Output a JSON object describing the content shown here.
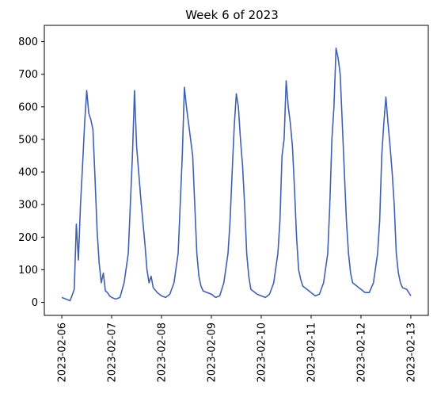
{
  "chart_data": {
    "type": "line",
    "title": "Week 6 of 2023",
    "xlabel": "",
    "ylabel": "",
    "x_range": [
      "2023-02-06",
      "2023-02-13"
    ],
    "ylim": [
      -40,
      850
    ],
    "x_ticks": [
      "2023-02-06",
      "2023-02-07",
      "2023-02-08",
      "2023-02-09",
      "2023-02-10",
      "2023-02-11",
      "2023-02-12",
      "2023-02-13"
    ],
    "y_ticks": [
      0,
      100,
      200,
      300,
      400,
      500,
      600,
      700,
      800
    ],
    "grid": false,
    "colors": {
      "series": "#4060B0"
    },
    "series": [
      {
        "x": [
          "2023-02-06 00:00",
          "2023-02-06 02:00",
          "2023-02-06 04:00",
          "2023-02-06 06:00",
          "2023-02-06 07:00",
          "2023-02-06 08:00",
          "2023-02-06 09:00",
          "2023-02-06 10:00",
          "2023-02-06 11:00",
          "2023-02-06 12:00",
          "2023-02-06 13:00",
          "2023-02-06 14:00",
          "2023-02-06 15:00",
          "2023-02-06 16:00",
          "2023-02-06 17:00",
          "2023-02-06 18:00",
          "2023-02-06 19:00",
          "2023-02-06 20:00",
          "2023-02-06 21:00",
          "2023-02-06 22:00",
          "2023-02-06 23:00",
          "2023-02-07 00:00",
          "2023-02-07 02:00",
          "2023-02-07 04:00",
          "2023-02-07 06:00",
          "2023-02-07 08:00",
          "2023-02-07 09:00",
          "2023-02-07 10:00",
          "2023-02-07 11:00",
          "2023-02-07 12:00",
          "2023-02-07 13:00",
          "2023-02-07 14:00",
          "2023-02-07 15:00",
          "2023-02-07 16:00",
          "2023-02-07 17:00",
          "2023-02-07 18:00",
          "2023-02-07 19:00",
          "2023-02-07 20:00",
          "2023-02-07 22:00",
          "2023-02-08 00:00",
          "2023-02-08 02:00",
          "2023-02-08 04:00",
          "2023-02-08 06:00",
          "2023-02-08 08:00",
          "2023-02-08 09:00",
          "2023-02-08 10:00",
          "2023-02-08 11:00",
          "2023-02-08 12:00",
          "2023-02-08 13:00",
          "2023-02-08 14:00",
          "2023-02-08 15:00",
          "2023-02-08 16:00",
          "2023-02-08 17:00",
          "2023-02-08 18:00",
          "2023-02-08 19:00",
          "2023-02-08 20:00",
          "2023-02-08 22:00",
          "2023-02-09 00:00",
          "2023-02-09 02:00",
          "2023-02-09 04:00",
          "2023-02-09 06:00",
          "2023-02-09 08:00",
          "2023-02-09 09:00",
          "2023-02-09 10:00",
          "2023-02-09 11:00",
          "2023-02-09 12:00",
          "2023-02-09 13:00",
          "2023-02-09 14:00",
          "2023-02-09 15:00",
          "2023-02-09 16:00",
          "2023-02-09 17:00",
          "2023-02-09 18:00",
          "2023-02-09 19:00",
          "2023-02-09 20:00",
          "2023-02-09 22:00",
          "2023-02-10 00:00",
          "2023-02-10 02:00",
          "2023-02-10 04:00",
          "2023-02-10 06:00",
          "2023-02-10 08:00",
          "2023-02-10 09:00",
          "2023-02-10 10:00",
          "2023-02-10 11:00",
          "2023-02-10 12:00",
          "2023-02-10 13:00",
          "2023-02-10 14:00",
          "2023-02-10 15:00",
          "2023-02-10 16:00",
          "2023-02-10 17:00",
          "2023-02-10 18:00",
          "2023-02-10 19:00",
          "2023-02-10 20:00",
          "2023-02-10 22:00",
          "2023-02-11 00:00",
          "2023-02-11 02:00",
          "2023-02-11 04:00",
          "2023-02-11 06:00",
          "2023-02-11 08:00",
          "2023-02-11 09:00",
          "2023-02-11 10:00",
          "2023-02-11 11:00",
          "2023-02-11 12:00",
          "2023-02-11 13:00",
          "2023-02-11 14:00",
          "2023-02-11 15:00",
          "2023-02-11 16:00",
          "2023-02-11 17:00",
          "2023-02-11 18:00",
          "2023-02-11 19:00",
          "2023-02-11 20:00",
          "2023-02-11 22:00",
          "2023-02-12 00:00",
          "2023-02-12 02:00",
          "2023-02-12 04:00",
          "2023-02-12 06:00",
          "2023-02-12 08:00",
          "2023-02-12 09:00",
          "2023-02-12 10:00",
          "2023-02-12 11:00",
          "2023-02-12 12:00",
          "2023-02-12 13:00",
          "2023-02-12 14:00",
          "2023-02-12 15:00",
          "2023-02-12 16:00",
          "2023-02-12 17:00",
          "2023-02-12 18:00",
          "2023-02-12 19:00",
          "2023-02-12 20:00",
          "2023-02-12 22:00",
          "2023-02-13 00:00"
        ],
        "values": [
          15,
          10,
          5,
          40,
          240,
          130,
          300,
          420,
          550,
          650,
          580,
          560,
          530,
          380,
          220,
          120,
          60,
          90,
          35,
          30,
          20,
          15,
          10,
          15,
          60,
          150,
          300,
          450,
          650,
          480,
          400,
          320,
          250,
          180,
          100,
          60,
          80,
          45,
          30,
          20,
          15,
          25,
          60,
          150,
          300,
          450,
          660,
          600,
          550,
          500,
          450,
          300,
          150,
          80,
          50,
          35,
          30,
          25,
          15,
          20,
          60,
          150,
          250,
          400,
          540,
          640,
          600,
          500,
          420,
          300,
          150,
          80,
          40,
          35,
          25,
          20,
          15,
          25,
          60,
          150,
          250,
          450,
          500,
          680,
          600,
          550,
          480,
          350,
          200,
          100,
          70,
          50,
          40,
          30,
          20,
          25,
          60,
          150,
          300,
          500,
          600,
          780,
          750,
          700,
          550,
          400,
          250,
          150,
          90,
          60,
          50,
          40,
          30,
          30,
          60,
          150,
          250,
          450,
          550,
          630,
          550,
          480,
          400,
          300,
          150,
          90,
          60,
          45,
          40,
          20
        ]
      }
    ]
  }
}
